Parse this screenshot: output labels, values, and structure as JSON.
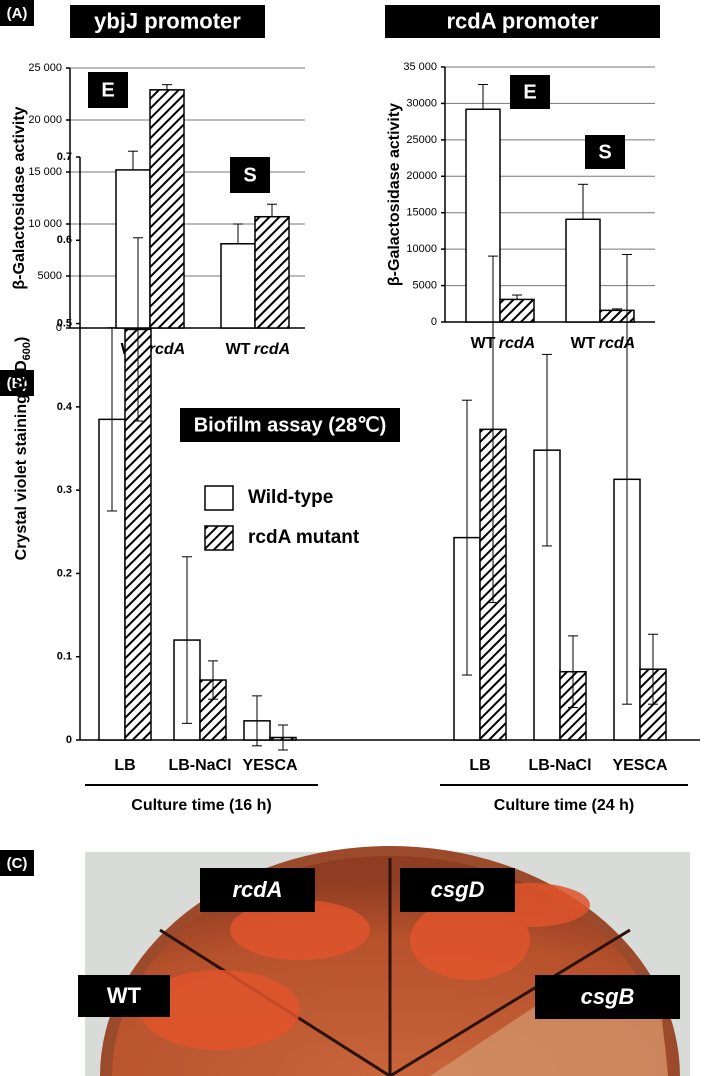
{
  "panels": {
    "a": "(A)",
    "b": "(B)",
    "c": "(C)"
  },
  "chart_data": [
    {
      "type": "bar",
      "title": "ybjJ promoter",
      "ylabel": "β-Galactosidase activity",
      "categories": [
        "E",
        "S"
      ],
      "series": [
        {
          "name": "WT",
          "color": "#ffffff",
          "pattern": "none",
          "values": [
            15200,
            8100
          ],
          "errors": [
            1800,
            1900
          ]
        },
        {
          "name": "rcdA",
          "color": "#ffffff",
          "pattern": "hatch",
          "values": [
            22900,
            10700
          ],
          "errors": [
            500,
            1200
          ]
        }
      ],
      "error_bars": "up",
      "grid": true,
      "ylim": [
        0,
        25000
      ],
      "yticks": [
        0,
        5000,
        {
          "value": 10000,
          "label": "10 000"
        },
        {
          "value": 15000,
          "label": "15 000"
        },
        {
          "value": 20000,
          "label": "20 000"
        },
        {
          "value": 25000,
          "label": "25 000"
        }
      ]
    },
    {
      "type": "bar",
      "title": "rcdA promoter",
      "ylabel": "β-Galactosidase activity",
      "categories": [
        "E",
        "S"
      ],
      "series": [
        {
          "name": "WT",
          "color": "#ffffff",
          "pattern": "none",
          "values": [
            29200,
            14100
          ],
          "errors": [
            3400,
            4800
          ]
        },
        {
          "name": "rcdA",
          "color": "#ffffff",
          "pattern": "hatch",
          "values": [
            3100,
            1600
          ],
          "errors": [
            600,
            200
          ]
        }
      ],
      "error_bars": "up",
      "grid": true,
      "ylim": [
        0,
        35000
      ],
      "yticks": [
        0,
        5000,
        10000,
        15000,
        20000,
        25000,
        30000,
        {
          "value": 35000,
          "label": "35 000"
        }
      ]
    },
    {
      "type": "bar",
      "title": "Biofilm assay (28℃)",
      "ylabel": [
        "Crystal violet staining (OD",
        "600",
        ")"
      ],
      "groups": [
        {
          "name": "Culture time (16 h)",
          "categories": [
            "LB",
            "LB-NaCl",
            "YESCA"
          ]
        },
        {
          "name": "Culture time (24 h)",
          "categories": [
            "LB",
            "LB-NaCl",
            "YESCA"
          ]
        }
      ],
      "series": [
        {
          "name": "Wild-type",
          "color": "#ffffff",
          "pattern": "none",
          "values": [
            0.385,
            0.12,
            0.023,
            0.243,
            0.348,
            0.313
          ],
          "errors": [
            0.11,
            0.1,
            0.03,
            0.165,
            0.115,
            0.27
          ]
        },
        {
          "name": "rcdA mutant",
          "color": "#ffffff",
          "pattern": "hatch",
          "values": [
            0.493,
            0.072,
            0.003,
            0.373,
            0.082,
            0.085
          ],
          "errors": [
            0.11,
            0.023,
            0.015,
            0.208,
            0.043,
            0.042
          ]
        }
      ],
      "error_bars": "both",
      "grid": false,
      "ylim": [
        0,
        0.7
      ],
      "yticks": [
        0,
        0.1,
        0.2,
        0.3,
        0.4,
        0.5,
        0.6,
        0.7
      ]
    }
  ],
  "photo": {
    "labels": [
      "rcdA",
      "csgD",
      "WT",
      "csgB"
    ]
  }
}
